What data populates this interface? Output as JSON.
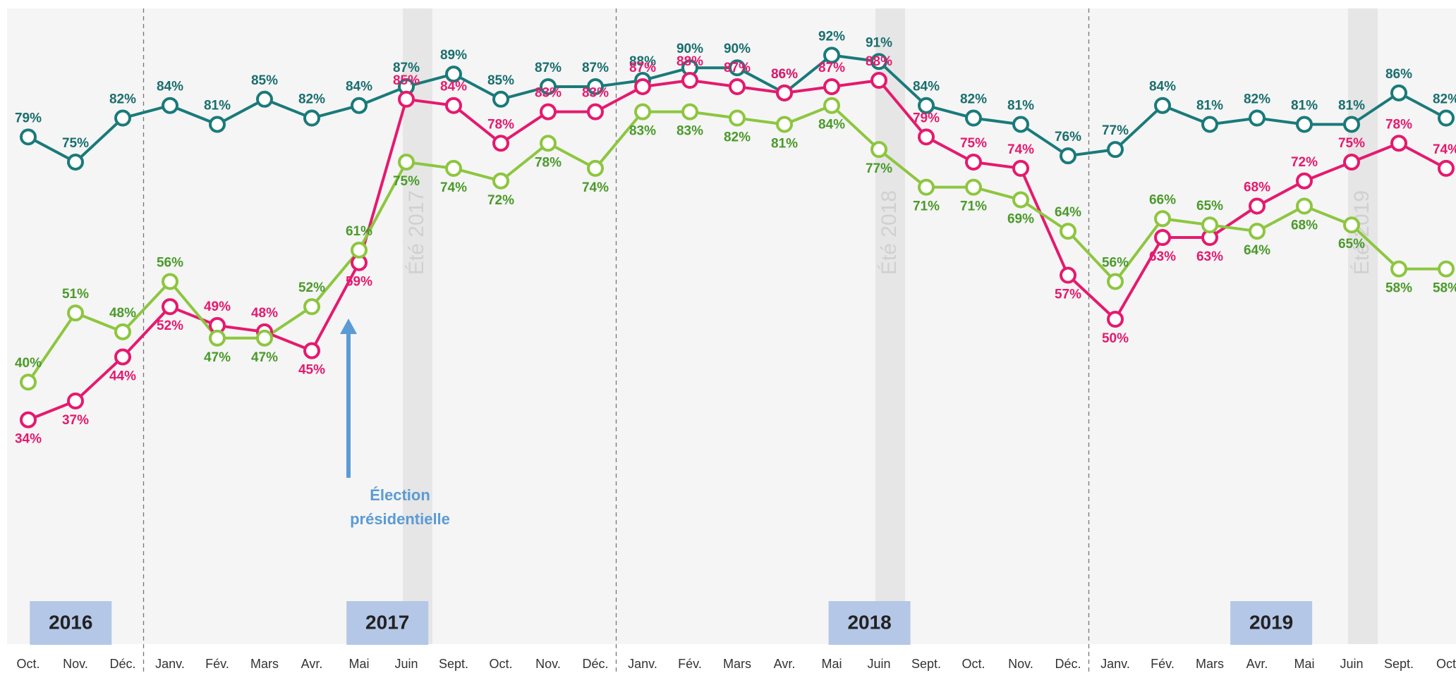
{
  "chart_data": {
    "type": "line",
    "categories": [
      "Oct.",
      "Nov.",
      "Déc.",
      "Janv.",
      "Fév.",
      "Mars",
      "Avr.",
      "Mai",
      "Juin",
      "Sept.",
      "Oct.",
      "Nov.",
      "Déc.",
      "Janv.",
      "Fév.",
      "Mars",
      "Avr.",
      "Mai",
      "Juin",
      "Sept.",
      "Oct.",
      "Nov.",
      "Déc.",
      "Janv.",
      "Fév.",
      "Mars",
      "Avr.",
      "Mai",
      "Juin",
      "Sept.",
      "Oct"
    ],
    "ylim": [
      0,
      100
    ],
    "series": [
      {
        "color": "#1a7a7a",
        "label_color": "#1a6e6e",
        "values": [
          79,
          75,
          82,
          84,
          81,
          85,
          82,
          84,
          87,
          89,
          85,
          87,
          87,
          88,
          90,
          90,
          86,
          92,
          91,
          84,
          82,
          81,
          76,
          77,
          84,
          81,
          82,
          81,
          81,
          86,
          82
        ],
        "value_labels": [
          "79%",
          "75%",
          "82%",
          "84%",
          "81%",
          "85%",
          "82%",
          "84%",
          "87%",
          "89%",
          "85%",
          "87%",
          "87%",
          "88%",
          "90%",
          "90%",
          "86%",
          "92%",
          "91%",
          "84%",
          "82%",
          "81%",
          "76%",
          "77%",
          "84%",
          "81%",
          "82%",
          "81%",
          "81%",
          "86%",
          "82%"
        ]
      },
      {
        "color": "#e6196e",
        "label_color": "#e6196e",
        "values": [
          34,
          37,
          44,
          52,
          49,
          48,
          45,
          59,
          85,
          84,
          78,
          83,
          83,
          87,
          88,
          87,
          86,
          87,
          88,
          79,
          75,
          74,
          57,
          50,
          63,
          63,
          68,
          72,
          75,
          78,
          74
        ],
        "value_labels": [
          "34%",
          "37%",
          "44%",
          "52%",
          "49%",
          "48%",
          "45%",
          "59%",
          "85%",
          "84%",
          "78%",
          "83%",
          "83%",
          "87%",
          "88%",
          "87%",
          "86%",
          "87%",
          "88%",
          "79%",
          "75%",
          "74%",
          "57%",
          "50%",
          "63%",
          "63%",
          "68%",
          "72%",
          "75%",
          "78%",
          "74%"
        ]
      },
      {
        "color": "#8dc63f",
        "label_color": "#4a9a2a",
        "values": [
          40,
          51,
          48,
          56,
          47,
          47,
          52,
          61,
          75,
          74,
          72,
          78,
          74,
          83,
          83,
          82,
          81,
          84,
          77,
          71,
          71,
          69,
          64,
          56,
          66,
          65,
          64,
          68,
          65,
          58,
          58
        ],
        "value_labels": [
          "40%",
          "51%",
          "48%",
          "56%",
          "47%",
          "47%",
          "52%",
          "61%",
          "75%",
          "74%",
          "72%",
          "78%",
          "74%",
          "83%",
          "83%",
          "82%",
          "81%",
          "84%",
          "77%",
          "71%",
          "71%",
          "69%",
          "64%",
          "56%",
          "66%",
          "65%",
          "64%",
          "68%",
          "65%",
          "58%",
          "58%"
        ]
      }
    ],
    "years": [
      "2016",
      "2017",
      "2018",
      "2019"
    ],
    "summers": [
      "Été 2017",
      "Été 2018",
      "Été 2019"
    ],
    "annotation": [
      "Élection",
      "présidentielle"
    ]
  }
}
